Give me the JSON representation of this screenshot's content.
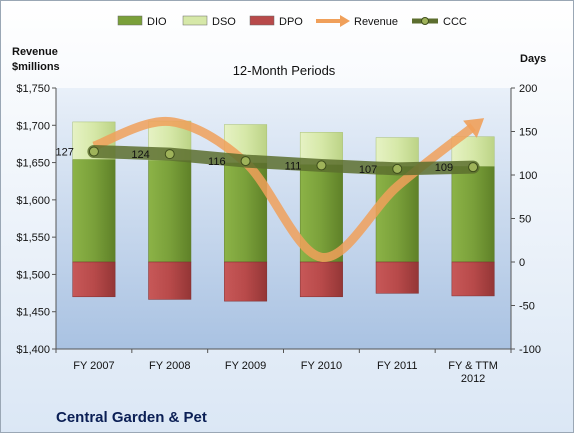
{
  "chart_data": {
    "type": "bar",
    "title": "12-Month Periods",
    "company": "Central Garden & Pet",
    "left_axis_label_line1": "Revenue",
    "left_axis_label_line2": "$millions",
    "right_axis_label": "Days",
    "categories": [
      "FY 2007",
      "FY 2008",
      "FY 2009",
      "FY 2010",
      "FY 2011",
      "FY & TTM"
    ],
    "category_sublabels": [
      "",
      "",
      "",
      "",
      "",
      "2012"
    ],
    "left_ylim": [
      1400,
      1750
    ],
    "left_ticks": [
      "$1,400",
      "$1,450",
      "$1,500",
      "$1,550",
      "$1,600",
      "$1,650",
      "$1,700",
      "$1,750"
    ],
    "right_ylim": [
      -100,
      200
    ],
    "right_ticks": [
      "-100",
      "-50",
      "0",
      "50",
      "100",
      "150",
      "200"
    ],
    "series": [
      {
        "name": "DIO",
        "axis": "right",
        "values": [
          118,
          117,
          114,
          112,
          110,
          110
        ],
        "color": "#7aa03a"
      },
      {
        "name": "DSO",
        "axis": "right",
        "values": [
          43,
          45,
          44,
          37,
          33,
          34
        ],
        "color": "#d6e8a8"
      },
      {
        "name": "DPO",
        "axis": "right",
        "values": [
          -40,
          -43,
          -45,
          -40,
          -36,
          -39
        ],
        "color": "#b84a4a"
      },
      {
        "name": "Revenue",
        "axis": "left",
        "values": [
          1672,
          1705,
          1650,
          1523,
          1618,
          1698
        ],
        "color": "#f0a05a"
      },
      {
        "name": "CCC",
        "axis": "right",
        "values": [
          127,
          124,
          116,
          111,
          107,
          109
        ],
        "color": "#5c6e2e"
      }
    ],
    "ccc_labels": [
      "127",
      "124",
      "116",
      "111",
      "107",
      "109"
    ],
    "legend_placement": "top",
    "grid": false
  }
}
